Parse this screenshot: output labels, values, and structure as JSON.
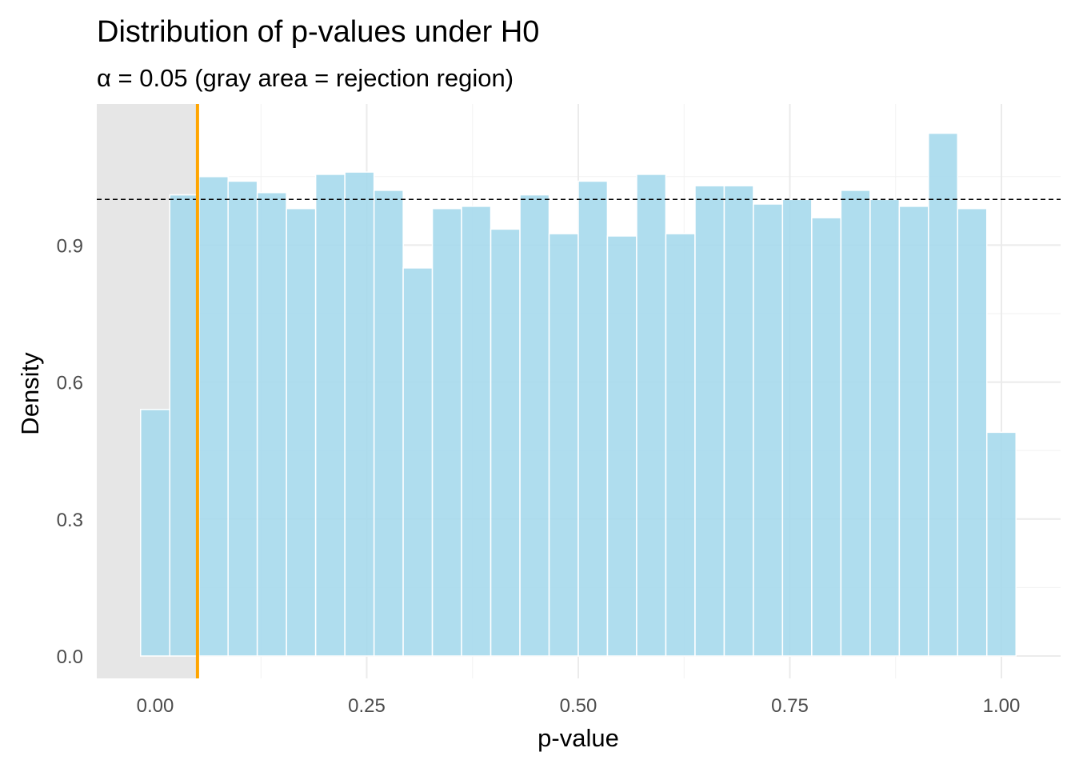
{
  "chart_data": {
    "type": "bar",
    "title": "Distribution of p-values under H0",
    "subtitle": "α = 0.05 (gray area = rejection region)",
    "xlabel": "p-value",
    "ylabel": "Density",
    "xlim": [
      -0.025,
      1.025
    ],
    "ylim": [
      -0.05,
      1.21
    ],
    "x_ticks": [
      {
        "value": 0.0,
        "label": "0.00"
      },
      {
        "value": 0.25,
        "label": "0.25"
      },
      {
        "value": 0.5,
        "label": "0.50"
      },
      {
        "value": 0.75,
        "label": "0.75"
      },
      {
        "value": 1.0,
        "label": "1.00"
      }
    ],
    "y_ticks": [
      {
        "value": 0.0,
        "label": "0.0"
      },
      {
        "value": 0.3,
        "label": "0.3"
      },
      {
        "value": 0.6,
        "label": "0.6"
      },
      {
        "value": 0.9,
        "label": "0.9"
      }
    ],
    "grid": true,
    "bin_width": 0.03448,
    "bins": {
      "centers": [
        0.0,
        0.0345,
        0.069,
        0.1034,
        0.1379,
        0.1724,
        0.2069,
        0.2414,
        0.2759,
        0.3103,
        0.3448,
        0.3793,
        0.4138,
        0.4483,
        0.4828,
        0.5172,
        0.5517,
        0.5862,
        0.6207,
        0.6552,
        0.6897,
        0.7241,
        0.7586,
        0.7931,
        0.8276,
        0.8621,
        0.8966,
        0.931,
        0.9655,
        1.0
      ],
      "density": [
        0.54,
        1.01,
        1.05,
        1.04,
        1.015,
        0.98,
        1.055,
        1.06,
        1.02,
        0.85,
        0.98,
        0.985,
        0.935,
        1.01,
        0.925,
        1.04,
        0.92,
        1.055,
        0.925,
        1.03,
        1.03,
        0.99,
        1.0,
        0.96,
        1.02,
        1.0,
        0.985,
        1.145,
        0.98,
        0.49
      ]
    },
    "bar_color": "#a6d9ec",
    "alpha": 0.05,
    "alpha_line_color": "#ffa500",
    "rejection_region": [
      0,
      0.05
    ],
    "rejection_region_color": "#e6e6e6",
    "reference_density": 1.0,
    "reference_line_style": "dashed"
  }
}
